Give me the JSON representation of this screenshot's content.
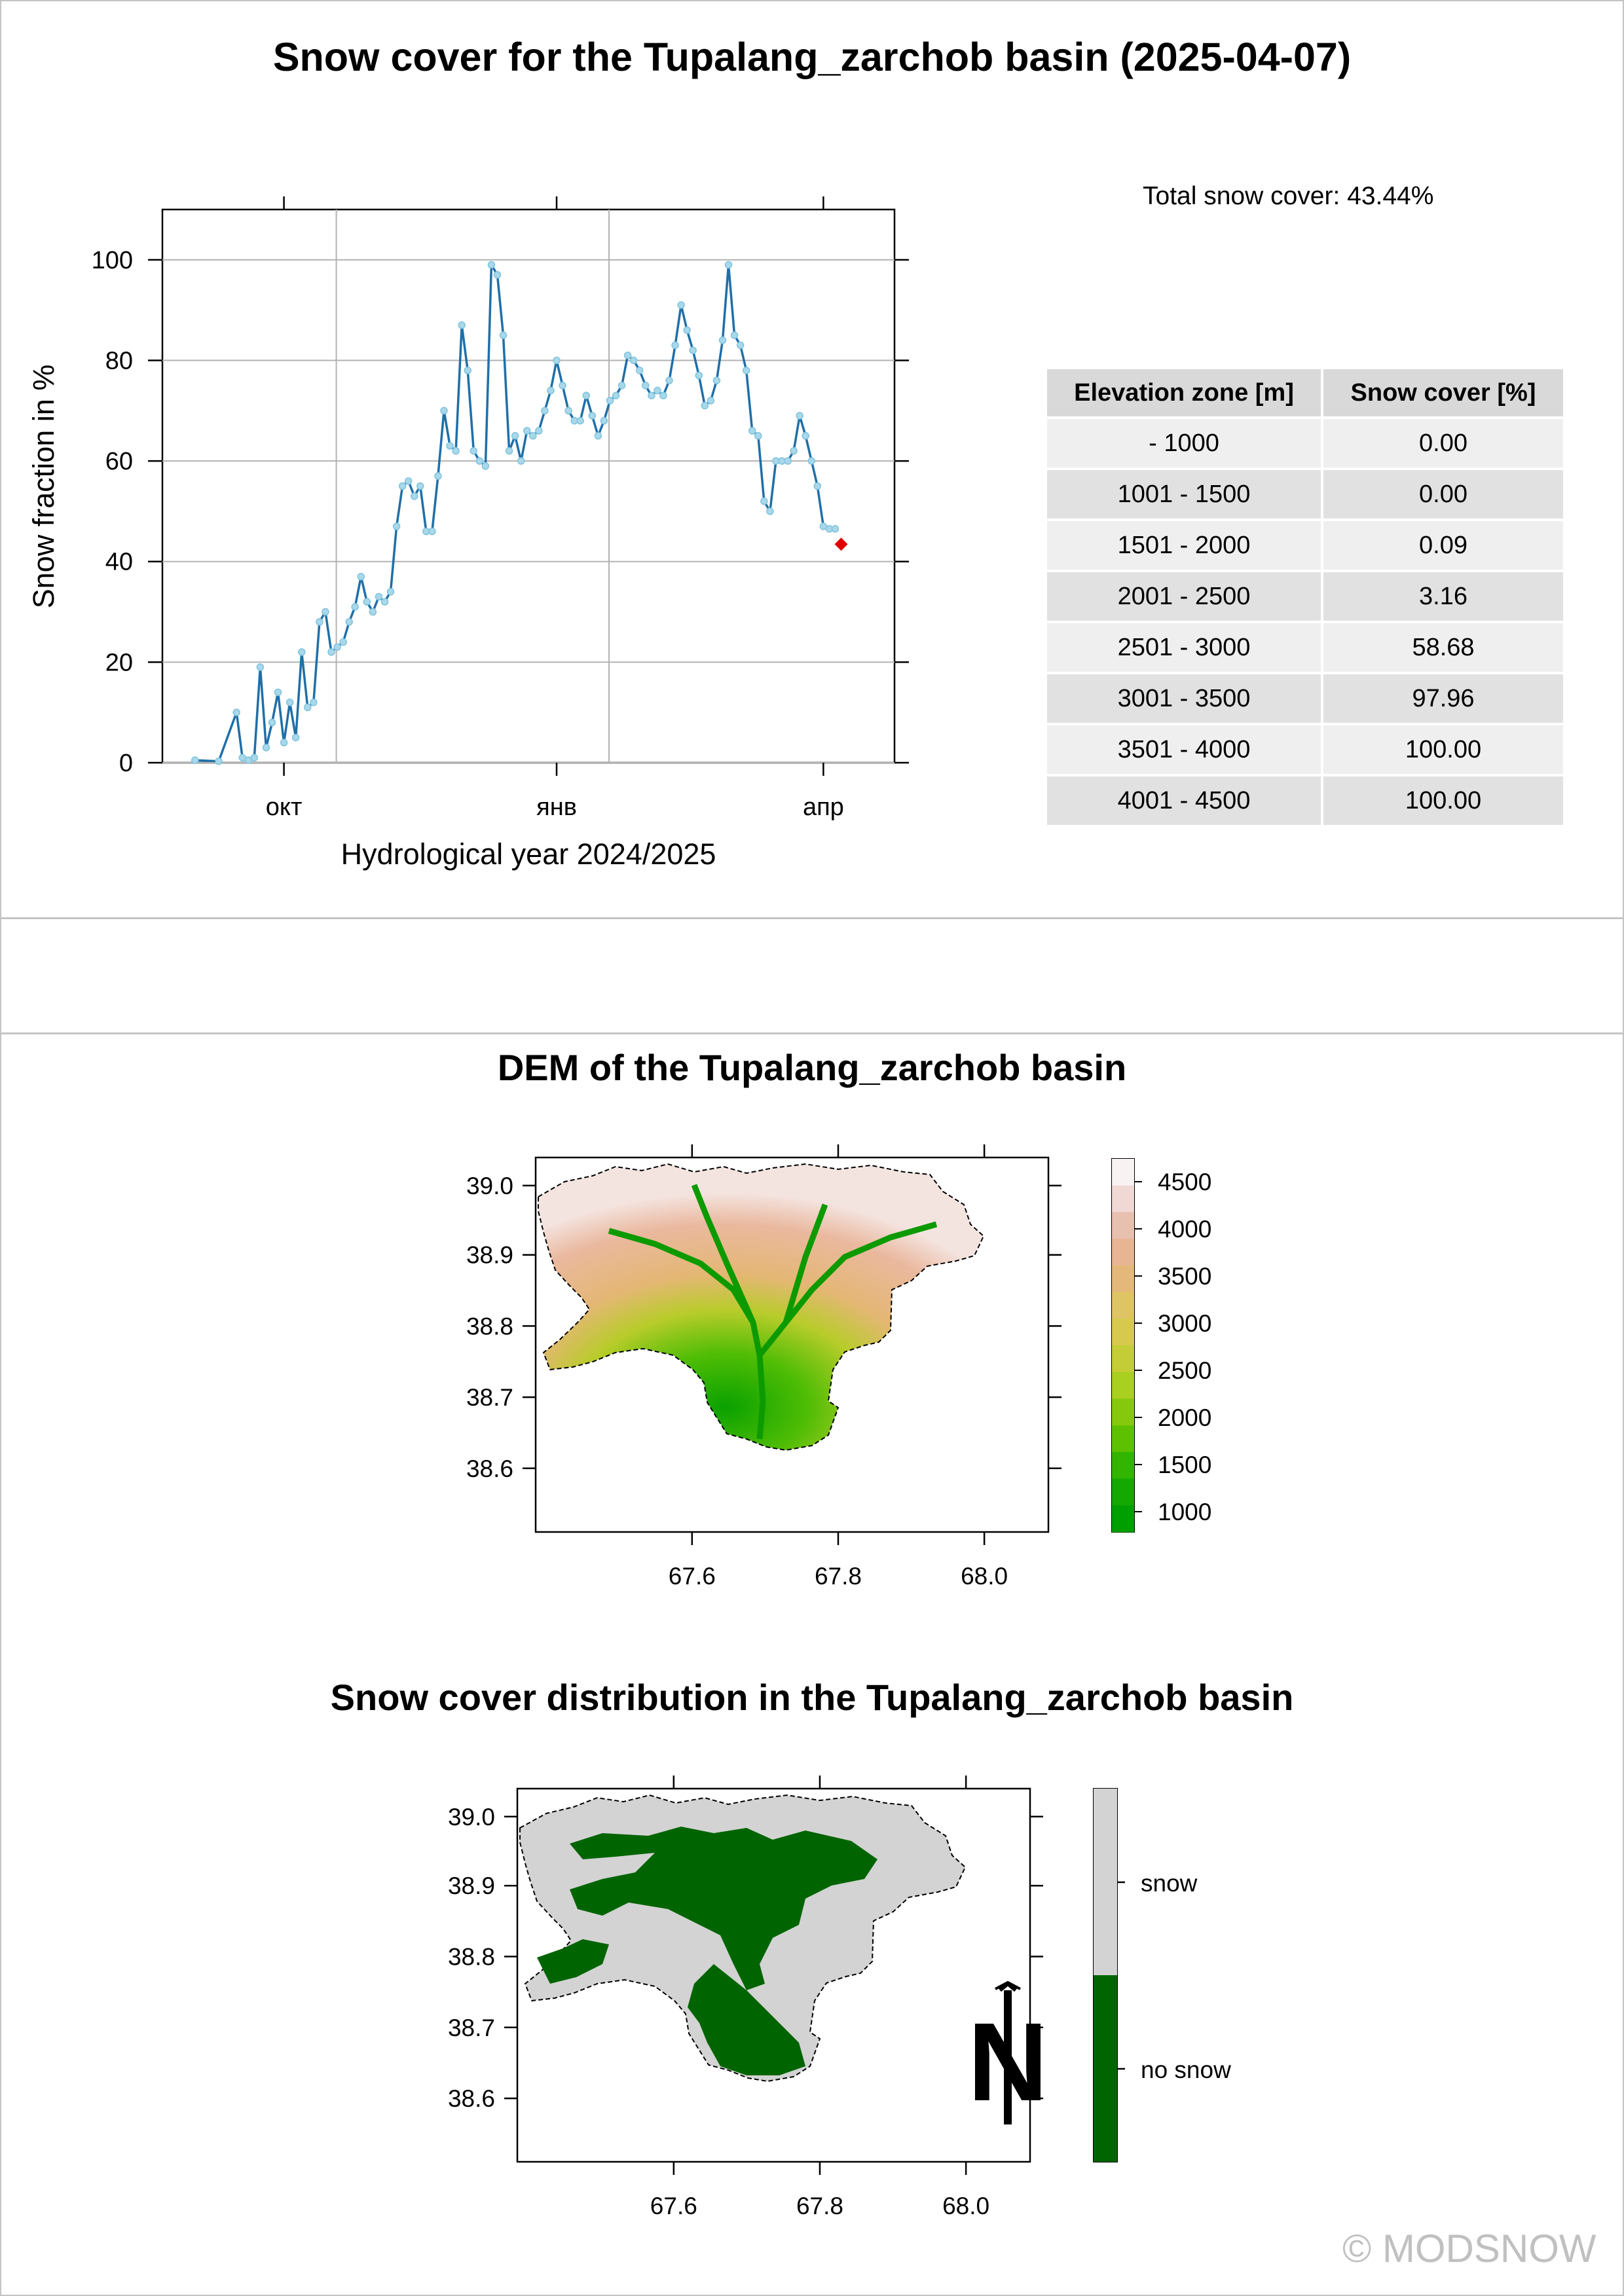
{
  "main_title": "Snow cover for the Tupalang_zarchob basin (2025-04-07)",
  "total_snow_cover": "Total snow cover: 43.44%",
  "zone_table": {
    "headers": [
      "Elevation zone [m]",
      "Snow cover [%]"
    ],
    "rows": [
      [
        "- 1000",
        "0.00"
      ],
      [
        "1001 - 1500",
        "0.00"
      ],
      [
        "1501 - 2000",
        "0.09"
      ],
      [
        "2001 - 2500",
        "3.16"
      ],
      [
        "2501 - 3000",
        "58.68"
      ],
      [
        "3001 - 3500",
        "97.96"
      ],
      [
        "3501 - 4000",
        "100.00"
      ],
      [
        "4001 - 4500",
        "100.00"
      ]
    ]
  },
  "dem_title": "DEM of the Tupalang_zarchob basin",
  "snowmap_title": "Snow cover distribution in the Tupalang_zarchob basin",
  "copyright": "© MODSNOW",
  "colors": {
    "line": "#1f6fa8",
    "marker_fill": "#a9d8ea",
    "current_point": "#e00000",
    "grid": "#b3b3b3",
    "snow": "#d3d3d3",
    "no_snow": "#006400"
  },
  "chart_data": [
    {
      "type": "line",
      "xlabel": "Hydrological year 2024/2025",
      "ylabel": "Snow fraction in %",
      "ylim": [
        0,
        110
      ],
      "yticks": [
        0,
        20,
        40,
        60,
        80,
        100
      ],
      "xticks": [
        "окт",
        "янв",
        "апр"
      ],
      "grid": true,
      "series": [
        {
          "x": [
            "2024-09-01",
            "2024-09-09",
            "2024-09-15",
            "2024-09-17",
            "2024-09-19",
            "2024-09-21",
            "2024-09-23",
            "2024-09-25",
            "2024-09-27",
            "2024-09-29",
            "2024-10-01",
            "2024-10-03",
            "2024-10-05",
            "2024-10-07",
            "2024-10-09",
            "2024-10-11",
            "2024-10-13",
            "2024-10-15",
            "2024-10-17",
            "2024-10-19",
            "2024-10-21",
            "2024-10-23",
            "2024-10-25",
            "2024-10-27",
            "2024-10-29",
            "2024-10-31",
            "2024-11-02",
            "2024-11-04",
            "2024-11-06",
            "2024-11-08",
            "2024-11-10",
            "2024-11-12",
            "2024-11-14",
            "2024-11-16",
            "2024-11-18",
            "2024-11-20",
            "2024-11-22",
            "2024-11-24",
            "2024-11-26",
            "2024-11-28",
            "2024-11-30",
            "2024-12-02",
            "2024-12-04",
            "2024-12-06",
            "2024-12-08",
            "2024-12-10",
            "2024-12-12",
            "2024-12-14",
            "2024-12-16",
            "2024-12-18",
            "2024-12-20",
            "2024-12-22",
            "2024-12-24",
            "2024-12-26",
            "2024-12-28",
            "2024-12-30",
            "2025-01-01",
            "2025-01-03",
            "2025-01-05",
            "2025-01-07",
            "2025-01-09",
            "2025-01-11",
            "2025-01-13",
            "2025-01-15",
            "2025-01-17",
            "2025-01-19",
            "2025-01-21",
            "2025-01-23",
            "2025-01-25",
            "2025-01-27",
            "2025-01-29",
            "2025-01-31",
            "2025-02-02",
            "2025-02-04",
            "2025-02-06",
            "2025-02-08",
            "2025-02-10",
            "2025-02-12",
            "2025-02-14",
            "2025-02-16",
            "2025-02-18",
            "2025-02-20",
            "2025-02-22",
            "2025-02-24",
            "2025-02-26",
            "2025-02-28",
            "2025-03-02",
            "2025-03-04",
            "2025-03-06",
            "2025-03-08",
            "2025-03-10",
            "2025-03-12",
            "2025-03-14",
            "2025-03-16",
            "2025-03-18",
            "2025-03-20",
            "2025-03-22",
            "2025-03-24",
            "2025-03-26",
            "2025-03-28",
            "2025-03-30",
            "2025-04-01",
            "2025-04-03",
            "2025-04-05"
          ],
          "y": [
            0.5,
            0.3,
            10,
            1,
            0.5,
            1,
            19,
            3,
            8,
            14,
            4,
            12,
            5,
            22,
            11,
            12,
            28,
            30,
            22,
            23,
            24,
            28,
            31,
            37,
            32,
            30,
            33,
            32,
            34,
            47,
            55,
            56,
            53,
            55,
            46,
            46,
            57,
            70,
            63,
            62,
            87,
            78,
            62,
            60,
            59,
            99,
            97,
            85,
            62,
            65,
            60,
            66,
            65,
            66,
            70,
            74,
            80,
            75,
            70,
            68,
            68,
            73,
            69,
            65,
            68,
            72,
            73,
            75,
            81,
            80,
            78,
            75,
            73,
            74,
            73,
            76,
            83,
            91,
            86,
            82,
            77,
            71,
            72,
            76,
            84,
            99,
            85,
            83,
            78,
            66,
            65,
            52,
            50,
            60,
            60,
            60,
            62,
            69,
            65,
            60,
            55,
            47,
            46.5,
            46.5
          ]
        }
      ],
      "current_point": {
        "x": "2025-04-07",
        "y": 43.44
      }
    },
    {
      "type": "heatmap",
      "title": "DEM of the Tupalang_zarchob basin",
      "xticks": [
        "67.6",
        "67.8",
        "68.0"
      ],
      "yticks": [
        "39.0",
        "38.9",
        "38.8",
        "38.7",
        "38.6"
      ],
      "legend_ticks": [
        "4500",
        "4000",
        "3500",
        "3000",
        "2500",
        "2000",
        "1500",
        "1000"
      ],
      "legend_colors": [
        "#f8f2f2",
        "#f0d8d4",
        "#e8c0b0",
        "#e7b593",
        "#e3b87a",
        "#dfc466",
        "#d6c94d",
        "#c4cd35",
        "#a9cf1f",
        "#86c90c",
        "#5dc100",
        "#32b400",
        "#14a800",
        "#009f00"
      ]
    },
    {
      "type": "heatmap",
      "title": "Snow cover distribution in the Tupalang_zarchob basin",
      "xticks": [
        "67.6",
        "67.8",
        "68.0"
      ],
      "yticks": [
        "39.0",
        "38.9",
        "38.8",
        "38.7",
        "38.6"
      ],
      "legend": [
        "snow",
        "no snow"
      ],
      "north_arrow_label": "N"
    }
  ]
}
